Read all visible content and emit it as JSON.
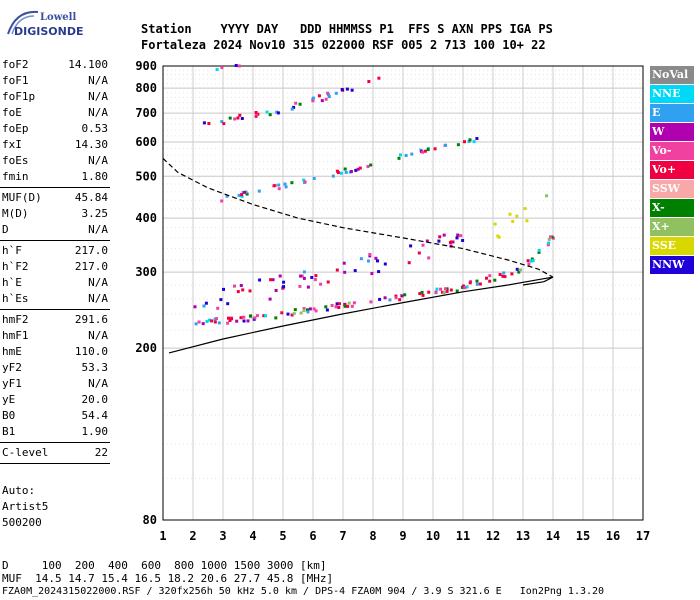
{
  "logo": {
    "top": "Lowell",
    "bottom": "DIGISONDE"
  },
  "header": {
    "line1": "Station    YYYY DAY   DDD HHMMSS P1  FFS S AXN PPS IGA PS",
    "line2": "Fortaleza 2024 Nov10 315 022000 RSF 005 2 713 100 10+ 22"
  },
  "params": [
    {
      "group": 1,
      "label": "foF2",
      "value": "14.100"
    },
    {
      "group": 1,
      "label": "foF1",
      "value": "N/A"
    },
    {
      "group": 1,
      "label": "foF1p",
      "value": "N/A"
    },
    {
      "group": 1,
      "label": "foE",
      "value": "N/A"
    },
    {
      "group": 1,
      "label": "foEp",
      "value": "0.53"
    },
    {
      "group": 1,
      "label": "fxI",
      "value": "14.30"
    },
    {
      "group": 1,
      "label": "foEs",
      "value": "N/A"
    },
    {
      "group": 1,
      "label": "fmin",
      "value": "1.80"
    },
    {
      "group": 2,
      "label": "MUF(D)",
      "value": "45.84"
    },
    {
      "group": 2,
      "label": "M(D)",
      "value": "3.25"
    },
    {
      "group": 2,
      "label": "D",
      "value": "N/A"
    },
    {
      "group": 3,
      "label": "h`F",
      "value": "217.0"
    },
    {
      "group": 3,
      "label": "h`F2",
      "value": "217.0"
    },
    {
      "group": 3,
      "label": "h`E",
      "value": "N/A"
    },
    {
      "group": 3,
      "label": "h`Es",
      "value": "N/A"
    },
    {
      "group": 4,
      "label": "hmF2",
      "value": "291.6"
    },
    {
      "group": 4,
      "label": "hmF1",
      "value": "N/A"
    },
    {
      "group": 4,
      "label": "hmE",
      "value": "110.0"
    },
    {
      "group": 4,
      "label": "yF2",
      "value": "53.3"
    },
    {
      "group": 4,
      "label": "yF1",
      "value": "N/A"
    },
    {
      "group": 4,
      "label": "yE",
      "value": "20.0"
    },
    {
      "group": 4,
      "label": "B0",
      "value": "54.4"
    },
    {
      "group": 4,
      "label": "B1",
      "value": "1.90"
    },
    {
      "group": 5,
      "label": "C-level",
      "value": "22"
    }
  ],
  "autoscaling": {
    "line1": "Auto:",
    "line2": "Artist5",
    "line3": "500200"
  },
  "legend": [
    {
      "label": "NoVal",
      "color": "#8a8a8a"
    },
    {
      "label": "NNE",
      "color": "#00d8f8"
    },
    {
      "label": "E",
      "color": "#30a0f0"
    },
    {
      "label": "W",
      "color": "#b000b0"
    },
    {
      "label": "Vo-",
      "color": "#f040a0"
    },
    {
      "label": "Vo+",
      "color": "#f00040"
    },
    {
      "label": "SSW",
      "color": "#f8a8a8"
    },
    {
      "label": "X-",
      "color": "#008000"
    },
    {
      "label": "X+",
      "color": "#90c060"
    },
    {
      "label": "SSE",
      "color": "#d8d800"
    },
    {
      "label": "NNW",
      "color": "#2000d8"
    }
  ],
  "bottom": {
    "d_row": "D     100  200  400  600  800 1000 1500 3000 [km]",
    "muf_row": "MUF  14.5 14.7 15.4 16.5 18.2 20.6 27.7 45.8 [MHz]",
    "footer": "FZA0M_2024315022000.RSF / 320fx256h 50 kHz 5.0 km / DPS-4 FZA0M 904 / 3.9 S 321.6 E   Ion2Png 1.3.20"
  },
  "chart_data": {
    "type": "scatter",
    "title": "",
    "xlabel": "",
    "ylabel": "",
    "xlim": [
      1,
      17
    ],
    "ylim": [
      80,
      900
    ],
    "y_scale": "log",
    "x_ticks": [
      1,
      2,
      3,
      4,
      5,
      6,
      7,
      8,
      9,
      10,
      11,
      12,
      13,
      14,
      15,
      16,
      17
    ],
    "y_ticks": [
      80,
      200,
      300,
      400,
      500,
      600,
      700,
      800,
      900
    ],
    "grid": true,
    "legend_position": "right",
    "traces": [
      {
        "name": "F2 virtual height trace (first hop)",
        "mode": "points",
        "segments": [
          {
            "x0": 1.8,
            "y0": 225,
            "x1": 5.0,
            "y1": 238
          },
          {
            "x0": 5.0,
            "y0": 238,
            "x1": 8.0,
            "y1": 255
          },
          {
            "x0": 8.0,
            "y0": 255,
            "x1": 11.0,
            "y1": 275
          },
          {
            "x0": 11.0,
            "y0": 275,
            "x1": 13.0,
            "y1": 305
          },
          {
            "x0": 13.0,
            "y0": 305,
            "x1": 14.0,
            "y1": 360
          }
        ]
      },
      {
        "name": "Spread cloud near 280 km",
        "mode": "points",
        "segments": [
          {
            "x0": 2.0,
            "y0": 240,
            "x1": 7.0,
            "y1": 285
          },
          {
            "x0": 7.0,
            "y0": 285,
            "x1": 11.0,
            "y1": 340
          }
        ]
      },
      {
        "name": "SSE cloud",
        "mode": "points",
        "segments": [
          {
            "x0": 12.0,
            "y0": 360,
            "x1": 14.0,
            "y1": 420
          }
        ]
      },
      {
        "name": "Second hop trace",
        "mode": "points",
        "segments": [
          {
            "x0": 2.9,
            "y0": 440,
            "x1": 7.0,
            "y1": 510
          },
          {
            "x0": 7.0,
            "y0": 510,
            "x1": 11.5,
            "y1": 610
          }
        ]
      },
      {
        "name": "Third hop trace",
        "mode": "points",
        "segments": [
          {
            "x0": 2.3,
            "y0": 650,
            "x1": 5.0,
            "y1": 710
          },
          {
            "x0": 5.0,
            "y0": 710,
            "x1": 8.2,
            "y1": 830
          }
        ]
      },
      {
        "name": "Fourth hop fragment",
        "mode": "points",
        "segments": [
          {
            "x0": 2.6,
            "y0": 885,
            "x1": 3.5,
            "y1": 900
          }
        ]
      }
    ],
    "profile_solid": [
      [
        1.2,
        195
      ],
      [
        3,
        210
      ],
      [
        5,
        225
      ],
      [
        7,
        240
      ],
      [
        9,
        255
      ],
      [
        11,
        270
      ],
      [
        12.5,
        280
      ],
      [
        13.5,
        288
      ],
      [
        14.0,
        292
      ],
      [
        13.7,
        285
      ],
      [
        13.0,
        280
      ]
    ],
    "profile_dashed": [
      [
        1.0,
        550
      ],
      [
        1.5,
        510
      ],
      [
        2.5,
        470
      ],
      [
        4,
        430
      ],
      [
        5.5,
        400
      ],
      [
        7,
        380
      ],
      [
        9,
        360
      ],
      [
        11,
        340
      ],
      [
        12.5,
        320
      ],
      [
        13.5,
        305
      ],
      [
        14.0,
        292
      ]
    ]
  }
}
